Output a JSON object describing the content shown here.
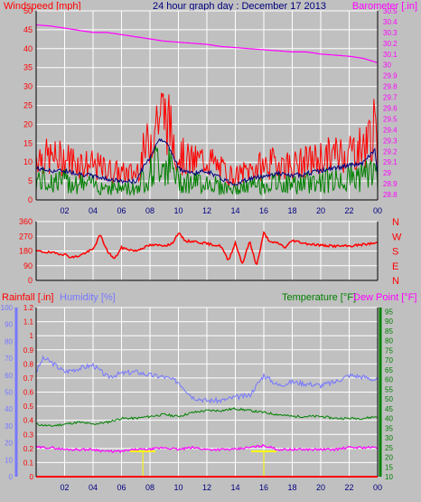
{
  "colors": {
    "background": "#c0c0c0",
    "plot_bg": "#c0c0c0",
    "grid": "#ffffff",
    "wind": "#ff0000",
    "wind_avg": "#000080",
    "wind_low": "#008000",
    "barometer": "#ff00ff",
    "direction": "#ff0000",
    "rain": "#ff0000",
    "humidity": "#7777ff",
    "temperature": "#008000",
    "dew": "#ff00ff",
    "hourly_rain": "#ffff00",
    "title": "#000080"
  },
  "chart_data": [
    {
      "type": "line",
      "title": "24 hour graph day : December 17 2013",
      "ylabel": "Windspeed [mph]",
      "y2label": "Barometer [.in]",
      "x_ticks": [
        "02",
        "04",
        "06",
        "08",
        "10",
        "12",
        "14",
        "16",
        "18",
        "20",
        "22",
        "00"
      ],
      "xlim": [
        0,
        24
      ],
      "ylim": [
        0,
        50
      ],
      "y_ticks": [
        "0",
        "5",
        "10",
        "15",
        "20",
        "25",
        "30",
        "35",
        "40",
        "45",
        "50"
      ],
      "y2lim": [
        28.75,
        30.5
      ],
      "y2_ticks": [
        "28.8",
        "28.9",
        "29",
        "29.1",
        "29.2",
        "29.3",
        "29.4",
        "29.5",
        "29.6",
        "29.7",
        "29.8",
        "29.9",
        "30",
        "30.1",
        "30.2",
        "30.3",
        "30.4",
        "30.5"
      ],
      "grid": true,
      "series": [
        {
          "name": "Windspeed [mph]",
          "axis": "y",
          "x": [
            0,
            1,
            2,
            3,
            4,
            5,
            6,
            7,
            7.5,
            8,
            8.5,
            9,
            9.5,
            10,
            11,
            12,
            13,
            14,
            15,
            16,
            17,
            18,
            19,
            20,
            21,
            22,
            23,
            23.8,
            24
          ],
          "y": [
            12,
            11,
            11,
            10,
            9,
            8,
            7,
            7,
            12,
            16,
            22,
            23,
            18,
            12,
            10,
            11,
            8,
            6,
            8,
            9,
            10,
            9,
            10,
            11,
            12,
            13,
            14,
            19,
            9
          ]
        },
        {
          "name": "Barometer [.in]",
          "axis": "y2",
          "x": [
            0,
            1,
            2,
            3,
            4,
            5,
            6,
            7,
            8,
            9,
            10,
            11,
            12,
            13,
            14,
            15,
            16,
            17,
            18,
            19,
            20,
            21,
            22,
            23,
            24
          ],
          "y": [
            30.37,
            30.36,
            30.34,
            30.32,
            30.3,
            30.3,
            30.28,
            30.26,
            30.24,
            30.22,
            30.21,
            30.2,
            30.19,
            30.17,
            30.16,
            30.15,
            30.14,
            30.13,
            30.12,
            30.12,
            30.1,
            30.09,
            30.08,
            30.06,
            30.02
          ]
        }
      ]
    },
    {
      "type": "line",
      "y_ticks": [
        "360",
        "270",
        "180",
        "90",
        "0"
      ],
      "ylim": [
        0,
        360
      ],
      "compass": [
        "N",
        "W",
        "S",
        "E",
        "N"
      ],
      "x_ticks": [],
      "series": [
        {
          "name": "Wind direction",
          "x": [
            0,
            1,
            2,
            2.5,
            3,
            4,
            4.5,
            5,
            5.5,
            6,
            7,
            7.5,
            8,
            9,
            9.5,
            10,
            10.5,
            11,
            12,
            13,
            13.5,
            14,
            14.5,
            15,
            15.5,
            16,
            16.5,
            17,
            17.5,
            18,
            19,
            20,
            21,
            22,
            23,
            24
          ],
          "y": [
            180,
            170,
            160,
            140,
            150,
            190,
            280,
            180,
            130,
            200,
            180,
            200,
            215,
            215,
            220,
            290,
            240,
            240,
            225,
            210,
            120,
            230,
            100,
            240,
            90,
            290,
            230,
            230,
            200,
            245,
            225,
            215,
            210,
            210,
            220,
            230
          ]
        }
      ]
    },
    {
      "type": "line",
      "ylabel": "Rainfall [.in]",
      "y2label": "Humidity [%]",
      "y3label": "Temperature [°F]",
      "y4label": "Dew Point [°F]",
      "x_ticks": [
        "02",
        "04",
        "06",
        "08",
        "10",
        "12",
        "14",
        "16",
        "18",
        "20",
        "22",
        "00"
      ],
      "xlim": [
        0,
        24
      ],
      "rain_ticks": [
        "0",
        "0.1",
        "0.2",
        "0.3",
        "0.4",
        "0.5",
        "0.6",
        "0.7",
        "0.8",
        "0.9",
        "1",
        "1.1",
        "1.2"
      ],
      "rain_lim": [
        0,
        1.2
      ],
      "hum_ticks": [
        "0",
        "10",
        "20",
        "30",
        "40",
        "50",
        "60",
        "70",
        "80",
        "90",
        "100"
      ],
      "hum_lim": [
        0,
        100
      ],
      "temp_ticks": [
        "10",
        "15",
        "20",
        "25",
        "30",
        "35",
        "40",
        "45",
        "50",
        "55",
        "60",
        "65",
        "70",
        "75",
        "80",
        "85",
        "90",
        "95"
      ],
      "temp_lim": [
        10,
        97
      ],
      "grid": true,
      "series": [
        {
          "name": "Rainfall [.in]",
          "axis": "rain",
          "x": [
            0,
            24
          ],
          "y": [
            0,
            0
          ]
        },
        {
          "name": "Humidity [%]",
          "axis": "hum",
          "x": [
            0,
            0.5,
            1,
            2,
            3,
            4,
            5,
            6,
            7,
            8,
            9,
            10,
            11,
            12,
            13,
            14,
            15,
            16,
            17,
            18,
            19,
            20,
            21,
            22,
            23,
            24
          ],
          "y": [
            62,
            70,
            68,
            62,
            64,
            66,
            59,
            61,
            62,
            60,
            59,
            56,
            47,
            45,
            45,
            47,
            48,
            60,
            54,
            56,
            55,
            54,
            56,
            60,
            59,
            57
          ]
        },
        {
          "name": "Temperature [°F]",
          "axis": "temp",
          "x": [
            0,
            1,
            2,
            3,
            4,
            5,
            6,
            7,
            8,
            9,
            10,
            11,
            12,
            13,
            14,
            15,
            16,
            17,
            18,
            19,
            20,
            21,
            22,
            23,
            24
          ],
          "y": [
            37,
            36,
            37,
            38,
            37,
            38,
            40,
            40,
            41,
            42,
            41,
            43,
            44,
            44,
            45,
            44,
            43,
            42,
            41,
            41,
            41,
            40,
            40,
            40,
            41
          ]
        },
        {
          "name": "Dew Point [°F]",
          "axis": "temp",
          "x": [
            0,
            1,
            2,
            3,
            4,
            5,
            6,
            7,
            8,
            9,
            10,
            11,
            12,
            13,
            14,
            15,
            16,
            17,
            18,
            19,
            20,
            21,
            22,
            23,
            24
          ],
          "y": [
            25,
            25,
            24,
            24,
            24,
            23,
            23,
            24,
            24,
            25,
            24,
            25,
            24,
            24,
            24,
            25,
            26,
            24,
            24,
            24,
            24,
            24,
            25,
            25,
            25
          ]
        },
        {
          "name": "Hourly rain",
          "axis": "temp",
          "x": [
            7.5,
            16
          ],
          "y": [
            23,
            23
          ]
        }
      ]
    }
  ]
}
